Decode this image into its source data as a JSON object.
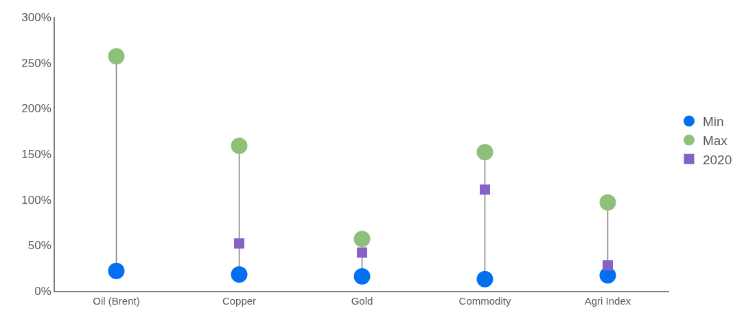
{
  "chart_data": {
    "type": "lollipop",
    "categories": [
      "Oil (Brent)",
      "Copper",
      "Gold",
      "Commodity",
      "Agri Index"
    ],
    "series": [
      {
        "name": "Min",
        "color": "#0070f0",
        "marker": "circle",
        "values": [
          22,
          18,
          16,
          13,
          17
        ]
      },
      {
        "name": "Max",
        "color": "#8fc07a",
        "marker": "circle",
        "values": [
          257,
          159,
          57,
          152,
          97
        ]
      },
      {
        "name": "2020",
        "color": "#8462c8",
        "marker": "square",
        "values": [
          null,
          52,
          42,
          111,
          28
        ]
      }
    ],
    "ylim": [
      0,
      300
    ],
    "yticks": [
      {
        "value": 0,
        "label": "0%"
      },
      {
        "value": 50,
        "label": "50%"
      },
      {
        "value": 100,
        "label": "100%"
      },
      {
        "value": 150,
        "label": "150%"
      },
      {
        "value": 200,
        "label": "200%"
      },
      {
        "value": 250,
        "label": "250%"
      },
      {
        "value": 300,
        "label": "300%"
      }
    ],
    "legend": "right"
  }
}
